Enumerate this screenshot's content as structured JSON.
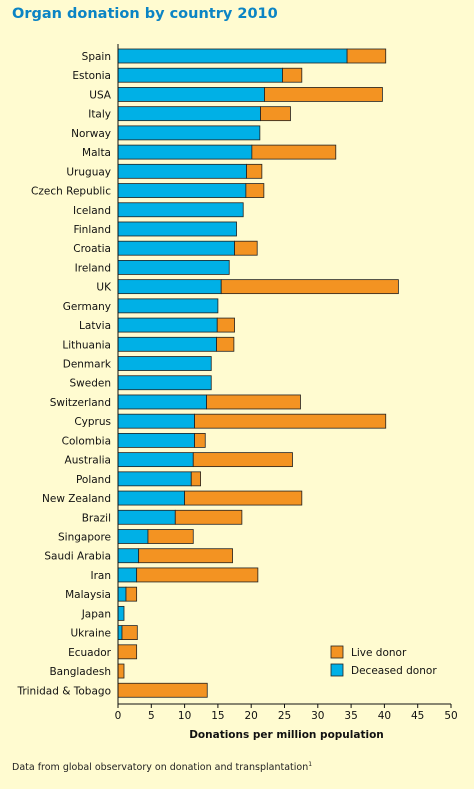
{
  "title": "Organ donation by country 2010",
  "footnote": {
    "text": "Data from global observatory on donation and transplantation",
    "superscript": "1"
  },
  "colors": {
    "deceased": "#00b0e6",
    "live": "#f39322",
    "background": "#fffbd0",
    "title": "#0b84c4"
  },
  "chart_data": {
    "type": "bar",
    "orientation": "horizontal",
    "stacked": true,
    "title": "Organ donation by country 2010",
    "xlabel": "Donations per million population",
    "ylabel": "",
    "xlim": [
      0,
      50
    ],
    "xticks": [
      0,
      5,
      10,
      15,
      20,
      25,
      30,
      35,
      40,
      45,
      50
    ],
    "legend_position": "bottom-right",
    "grid": false,
    "categories": [
      "Spain",
      "Estonia",
      "USA",
      "Italy",
      "Norway",
      "Malta",
      "Uruguay",
      "Czech Republic",
      "Iceland",
      "Finland",
      "Croatia",
      "Ireland",
      "UK",
      "Germany",
      "Latvia",
      "Lithuania",
      "Denmark",
      "Sweden",
      "Switzerland",
      "Cyprus",
      "Colombia",
      "Australia",
      "Poland",
      "New Zealand",
      "Brazil",
      "Singapore",
      "Saudi Arabia",
      "Iran",
      "Malaysia",
      "Japan",
      "Ukraine",
      "Ecuador",
      "Bangladesh",
      "Trinidad & Tobago"
    ],
    "series": [
      {
        "name": "Deceased donor",
        "values": [
          34.4,
          24.7,
          22.0,
          21.4,
          21.3,
          20.1,
          19.3,
          19.2,
          18.8,
          17.8,
          17.5,
          16.7,
          15.5,
          15.0,
          14.9,
          14.8,
          14.0,
          14.0,
          13.3,
          11.5,
          11.5,
          11.3,
          11.0,
          10.0,
          8.6,
          4.5,
          3.1,
          2.8,
          1.2,
          0.9,
          0.6,
          0.0,
          0.0,
          0.0
        ]
      },
      {
        "name": "Live donor",
        "values": [
          5.8,
          2.9,
          17.7,
          4.5,
          0.0,
          12.6,
          2.3,
          2.7,
          0.0,
          0.0,
          3.4,
          0.0,
          26.6,
          0.0,
          2.6,
          2.6,
          0.0,
          0.0,
          14.1,
          28.7,
          1.6,
          14.9,
          1.4,
          17.6,
          10.0,
          6.8,
          14.1,
          18.2,
          1.6,
          0.0,
          2.3,
          2.8,
          0.9,
          13.4
        ]
      }
    ]
  }
}
